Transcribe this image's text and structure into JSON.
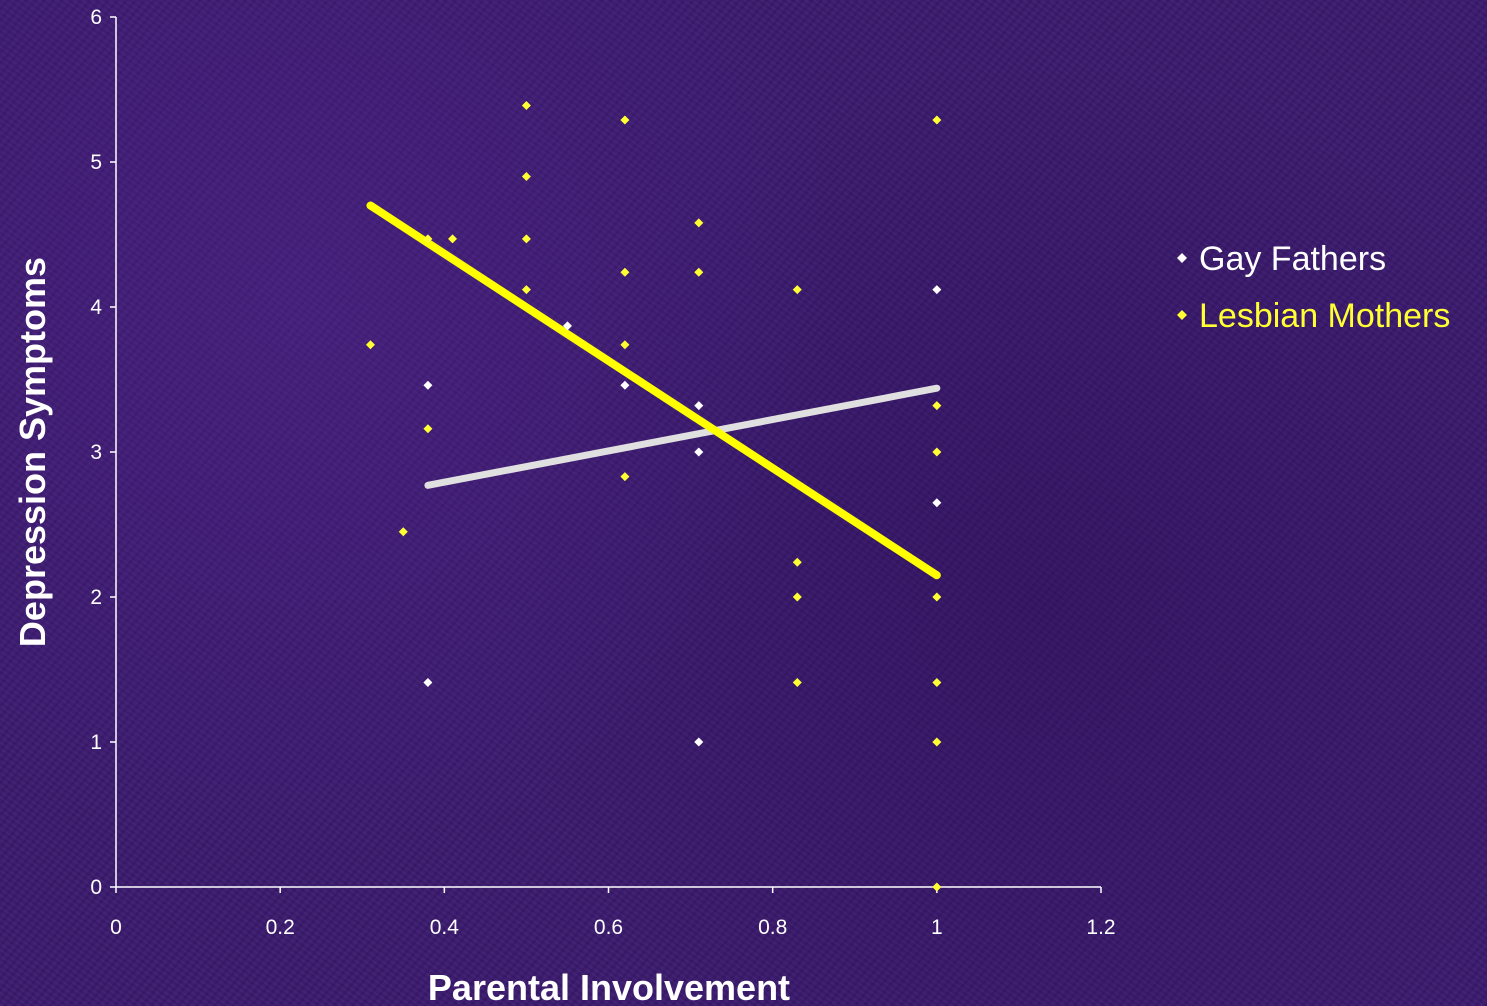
{
  "chart_data": {
    "type": "scatter",
    "title": "",
    "xlabel": "Parental Involvement",
    "ylabel": "Depression Symptoms",
    "xlim": [
      0,
      1.2
    ],
    "ylim": [
      0,
      6
    ],
    "xticks": [
      "0",
      "0.2",
      "0.4",
      "0.6",
      "0.8",
      "1",
      "1.2"
    ],
    "yticks": [
      "0",
      "1",
      "2",
      "3",
      "4",
      "5",
      "6"
    ],
    "legend_position": "right",
    "grid": false,
    "series": [
      {
        "name": "Gay Fathers",
        "color": "#ffffff",
        "marker": "diamond",
        "points": [
          [
            0.38,
            1.41
          ],
          [
            0.38,
            3.46
          ],
          [
            0.55,
            3.87
          ],
          [
            0.62,
            3.46
          ],
          [
            0.71,
            1.0
          ],
          [
            0.71,
            3.0
          ],
          [
            0.71,
            3.32
          ],
          [
            1.0,
            2.65
          ],
          [
            1.0,
            4.12
          ]
        ],
        "trendline": {
          "color": "#e0e0e0",
          "x": [
            0.38,
            1.0
          ],
          "y": [
            2.77,
            3.44
          ]
        }
      },
      {
        "name": "Lesbian Mothers",
        "color": "#ffff33",
        "marker": "diamond",
        "points": [
          [
            0.31,
            3.74
          ],
          [
            0.35,
            2.45
          ],
          [
            0.38,
            3.16
          ],
          [
            0.38,
            4.47
          ],
          [
            0.41,
            4.47
          ],
          [
            0.5,
            4.12
          ],
          [
            0.5,
            4.47
          ],
          [
            0.5,
            4.9
          ],
          [
            0.5,
            5.39
          ],
          [
            0.62,
            2.83
          ],
          [
            0.62,
            3.74
          ],
          [
            0.62,
            4.24
          ],
          [
            0.62,
            5.29
          ],
          [
            0.71,
            4.24
          ],
          [
            0.71,
            4.58
          ],
          [
            0.83,
            1.41
          ],
          [
            0.83,
            2.0
          ],
          [
            0.83,
            2.24
          ],
          [
            0.83,
            4.12
          ],
          [
            1.0,
            0.0
          ],
          [
            1.0,
            1.0
          ],
          [
            1.0,
            1.41
          ],
          [
            1.0,
            2.0
          ],
          [
            1.0,
            3.0
          ],
          [
            1.0,
            3.32
          ],
          [
            1.0,
            5.29
          ]
        ],
        "trendline": {
          "color": "#ffff00",
          "x": [
            0.31,
            1.0
          ],
          "y": [
            4.7,
            2.15
          ]
        }
      }
    ]
  }
}
